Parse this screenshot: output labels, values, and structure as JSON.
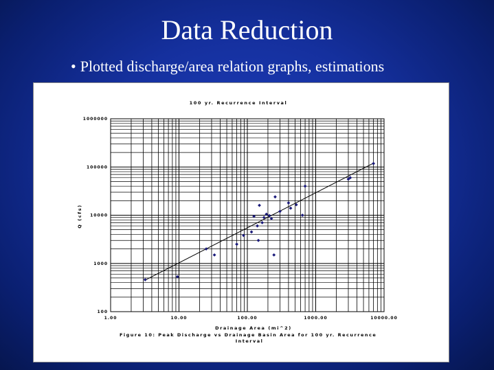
{
  "slide": {
    "title": "Data Reduction",
    "bullet_symbol": "•",
    "bullet": "Plotted discharge/area relation graphs, estimations"
  },
  "colors": {
    "background": "#15309e",
    "panel": "#ffffff",
    "marker": "#1a1a7a",
    "grid": "#000000"
  },
  "chart_data": {
    "type": "scatter",
    "title": "100 yr. Recurrence Interval",
    "xlabel": "Drainage Area (mi^2)",
    "ylabel": "Q (cfs)",
    "caption": "Figure 10: Peak Discharge vs Drainage Basin Area for 100 yr. Recurrence Interval",
    "x_scale": "log",
    "y_scale": "log",
    "xlim": [
      1,
      10000
    ],
    "ylim": [
      100,
      1000000
    ],
    "x_ticks": [
      "1.00",
      "10.00",
      "100.00",
      "1000.00",
      "10000.00"
    ],
    "y_ticks": [
      "100",
      "1000",
      "10000",
      "100000",
      "1000000"
    ],
    "grid": true,
    "series": [
      {
        "marker": "diamond",
        "points": [
          [
            3.2,
            460
          ],
          [
            9.5,
            530
          ],
          [
            25,
            2000
          ],
          [
            33,
            1500
          ],
          [
            70,
            2500
          ],
          [
            88,
            3800
          ],
          [
            115,
            4500
          ],
          [
            125,
            9500
          ],
          [
            140,
            6000
          ],
          [
            145,
            3000
          ],
          [
            150,
            16000
          ],
          [
            165,
            7000
          ],
          [
            175,
            9000
          ],
          [
            190,
            10500
          ],
          [
            210,
            9800
          ],
          [
            225,
            8500
          ],
          [
            245,
            1500
          ],
          [
            255,
            24000
          ],
          [
            300,
            12000
          ],
          [
            400,
            18000
          ],
          [
            430,
            14000
          ],
          [
            520,
            16500
          ],
          [
            640,
            10000
          ],
          [
            700,
            40000
          ],
          [
            3000,
            56000
          ],
          [
            3200,
            60000
          ],
          [
            7000,
            118000
          ]
        ]
      }
    ],
    "trendline": {
      "from": [
        3.2,
        450
      ],
      "to": [
        7000,
        120000
      ]
    }
  }
}
